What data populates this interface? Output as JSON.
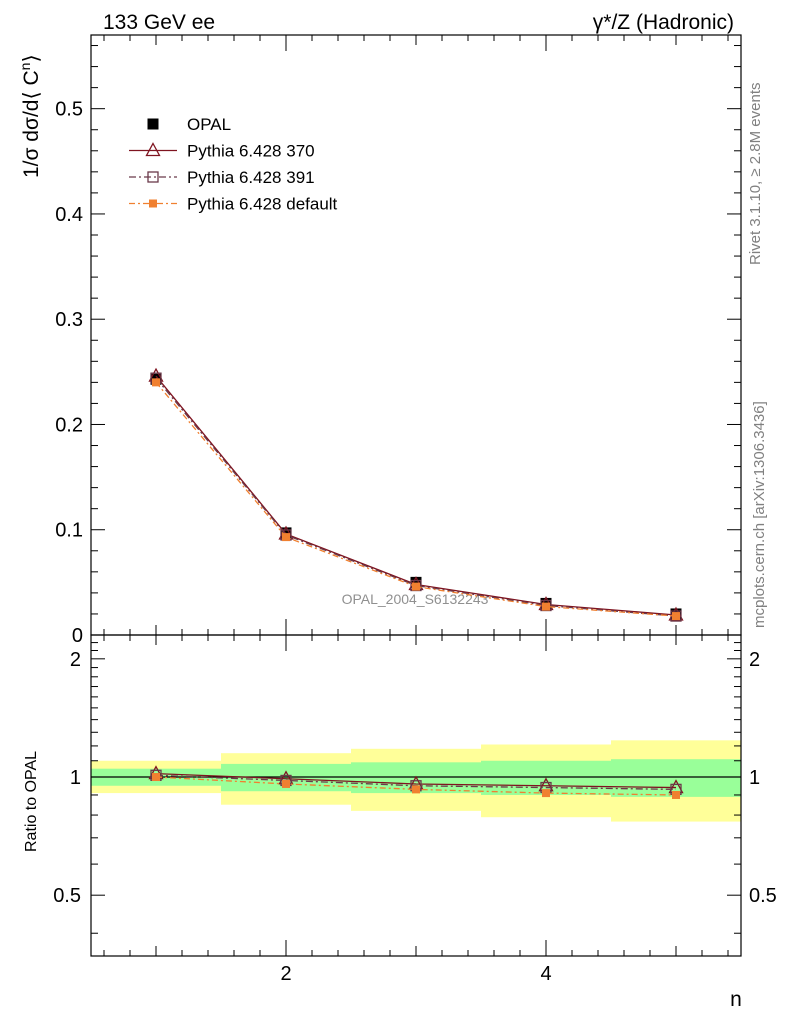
{
  "header": {
    "left_title": "133 GeV ee",
    "right_title": "γ*/Z (Hadronic)"
  },
  "side_text": {
    "rivet": "Rivet 3.1.10, ≥ 2.8M events",
    "mcplots": "mcplots.cern.ch [arXiv:1306.3436]"
  },
  "watermark": "OPAL_2004_S6132243",
  "colors": {
    "opal": "#000000",
    "pythia370": "#7f1420",
    "pythia391": "#6b3a4a",
    "pythia_default": "#f08030",
    "band_inner": "#99ff99",
    "band_outer": "#ffff99"
  },
  "chart_data": [
    {
      "type": "line",
      "panel": "main",
      "ylabel": "1/σ dσ/d⟨ C",
      "ylabel_sup": "n",
      "ylabel_tail": "⟩",
      "xlim": [
        0.5,
        5.5
      ],
      "ylim": [
        0,
        0.57
      ],
      "yticks": [
        0,
        0.1,
        0.2,
        0.3,
        0.4,
        0.5
      ],
      "ytick_labels": [
        "0",
        "0.1",
        "0.2",
        "0.3",
        "0.4",
        "0.5"
      ],
      "x": [
        1,
        2,
        3,
        4,
        5
      ],
      "series": [
        {
          "name": "OPAL",
          "marker": "square-filled",
          "values": [
            0.243,
            0.097,
            0.05,
            0.03,
            0.02
          ]
        },
        {
          "name": "Pythia 6.428 370",
          "marker": "triangle-open",
          "values": [
            0.246,
            0.096,
            0.048,
            0.029,
            0.019
          ]
        },
        {
          "name": "Pythia 6.428 391",
          "marker": "square-open",
          "values": [
            0.244,
            0.095,
            0.047,
            0.028,
            0.018
          ]
        },
        {
          "name": "Pythia 6.428 default",
          "marker": "square-small-filled",
          "values": [
            0.24,
            0.093,
            0.046,
            0.027,
            0.018
          ]
        }
      ],
      "legend_position": "top-left"
    },
    {
      "type": "line",
      "panel": "ratio",
      "ylabel": "Ratio to OPAL",
      "xlabel": "n",
      "xlim": [
        0.5,
        5.5
      ],
      "ylim": [
        0.35,
        2.3
      ],
      "yticks": [
        0.5,
        1,
        2
      ],
      "ytick_labels": [
        "0.5",
        "1",
        "2"
      ],
      "xticks": [
        2,
        4
      ],
      "xtick_labels": [
        "2",
        "4"
      ],
      "x": [
        1,
        2,
        3,
        4,
        5
      ],
      "bins": [
        [
          0.5,
          1.5
        ],
        [
          1.5,
          2.5
        ],
        [
          2.5,
          3.5
        ],
        [
          3.5,
          4.5
        ],
        [
          4.5,
          5.5
        ]
      ],
      "band_inner": [
        [
          0.95,
          1.05
        ],
        [
          0.92,
          1.08
        ],
        [
          0.91,
          1.09
        ],
        [
          0.9,
          1.1
        ],
        [
          0.89,
          1.11
        ]
      ],
      "band_outer": [
        [
          0.91,
          1.1
        ],
        [
          0.85,
          1.15
        ],
        [
          0.82,
          1.18
        ],
        [
          0.79,
          1.21
        ],
        [
          0.77,
          1.24
        ]
      ],
      "series": [
        {
          "name": "Pythia 6.428 370",
          "values": [
            1.02,
            0.99,
            0.96,
            0.95,
            0.94
          ]
        },
        {
          "name": "Pythia 6.428 391",
          "values": [
            1.01,
            0.98,
            0.95,
            0.94,
            0.93
          ]
        },
        {
          "name": "Pythia 6.428 default",
          "values": [
            1.0,
            0.96,
            0.93,
            0.91,
            0.9
          ]
        }
      ]
    }
  ]
}
